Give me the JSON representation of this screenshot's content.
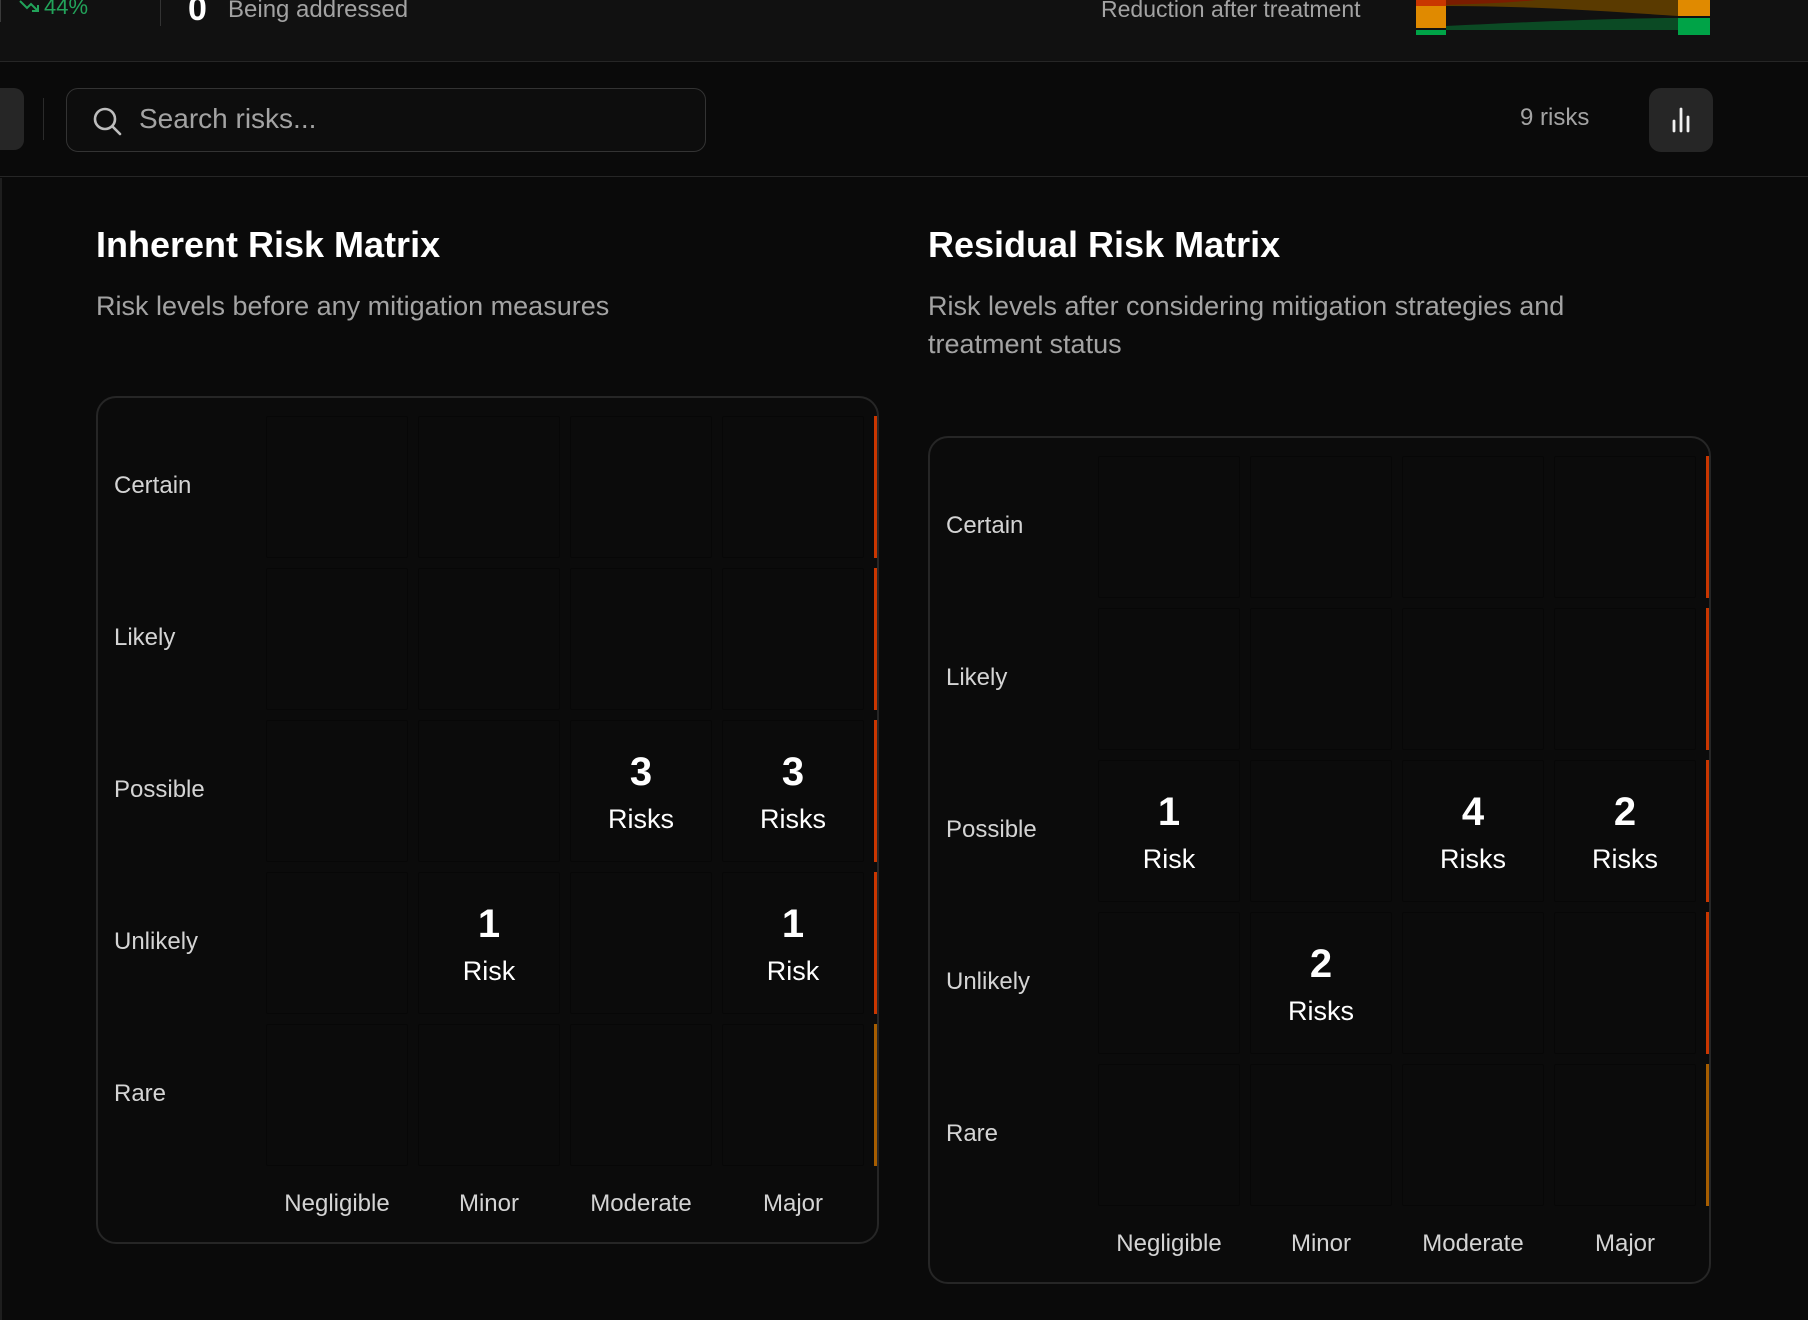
{
  "stats": {
    "trend_value": "44%",
    "being_addressed_count": "0",
    "being_addressed_label": "Being addressed",
    "reduction_label": "Reduction after treatment"
  },
  "toolbar": {
    "search_placeholder": "Search risks...",
    "risk_count": "9 risks"
  },
  "colors": {
    "low": "#00873a",
    "medium": "#a65d00",
    "high": "#c93600",
    "background": "#0a0a0a"
  },
  "likelihood_levels": [
    "Certain",
    "Likely",
    "Possible",
    "Unlikely",
    "Rare"
  ],
  "impact_levels": [
    "Negligible",
    "Minor",
    "Moderate",
    "Major"
  ],
  "cut_off_impact_label": "C",
  "inherent": {
    "title": "Inherent Risk Matrix",
    "description": "Risk levels before any mitigation measures",
    "levels": [
      [
        "medium",
        "high",
        "high",
        "high"
      ],
      [
        "low",
        "medium",
        "high",
        "high"
      ],
      [
        "low",
        "medium",
        "medium",
        "high"
      ],
      [
        "low",
        "low",
        "medium",
        "medium"
      ],
      [
        "low",
        "low",
        "low",
        "low"
      ]
    ],
    "counts": [
      [
        "",
        "",
        "",
        ""
      ],
      [
        "",
        "",
        "",
        ""
      ],
      [
        "",
        "",
        "3",
        "3"
      ],
      [
        "",
        "1",
        "",
        "1"
      ],
      [
        "",
        "",
        "",
        ""
      ]
    ],
    "count_labels": [
      [
        "",
        "",
        "",
        ""
      ],
      [
        "",
        "",
        "",
        ""
      ],
      [
        "",
        "",
        "Risks",
        "Risks"
      ],
      [
        "",
        "Risk",
        "",
        "Risk"
      ],
      [
        "",
        "",
        "",
        ""
      ]
    ],
    "edge_levels": [
      "high",
      "high",
      "high",
      "high",
      "medium"
    ]
  },
  "residual": {
    "title": "Residual Risk Matrix",
    "description": "Risk levels after considering mitigation strategies and treatment status",
    "levels": [
      [
        "medium",
        "high",
        "high",
        "high"
      ],
      [
        "low",
        "medium",
        "high",
        "high"
      ],
      [
        "low",
        "medium",
        "medium",
        "high"
      ],
      [
        "low",
        "low",
        "medium",
        "medium"
      ],
      [
        "low",
        "low",
        "low",
        "low"
      ]
    ],
    "counts": [
      [
        "",
        "",
        "",
        ""
      ],
      [
        "",
        "",
        "",
        ""
      ],
      [
        "1",
        "",
        "4",
        "2"
      ],
      [
        "",
        "2",
        "",
        ""
      ],
      [
        "",
        "",
        "",
        ""
      ]
    ],
    "count_labels": [
      [
        "",
        "",
        "",
        ""
      ],
      [
        "",
        "",
        "",
        ""
      ],
      [
        "Risk",
        "",
        "Risks",
        "Risks"
      ],
      [
        "",
        "Risks",
        "",
        ""
      ],
      [
        "",
        "",
        "",
        ""
      ]
    ],
    "edge_levels": [
      "high",
      "high",
      "high",
      "high",
      "medium"
    ]
  }
}
